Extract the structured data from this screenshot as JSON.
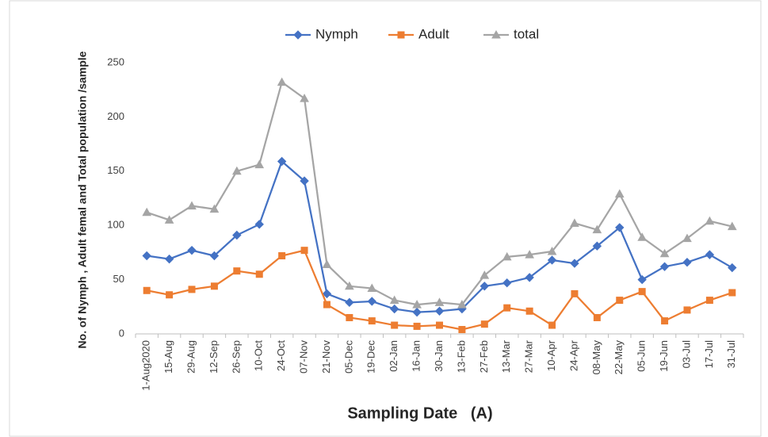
{
  "chart_data": {
    "type": "line",
    "x_label": "Sampling Date   (A)",
    "y_label": "No. of Nymph , Adult femal and Total population /sample",
    "categories": [
      "1-Aug2020",
      "15-Aug",
      "29-Aug",
      "12-Sep",
      "26-Sep",
      "10-Oct",
      "24-Oct",
      "07-Nov",
      "21-Nov",
      "05-Dec",
      "19-Dec",
      "02-Jan",
      "16-Jan",
      "30-Jan",
      "13-Feb",
      "27-Feb",
      "13-Mar",
      "27-Mar",
      "10-Apr",
      "24-Apr",
      "08-May",
      "22-May",
      "05-Jun",
      "19-Jun",
      "03-Jul",
      "17-Jul",
      "31-Jul"
    ],
    "series": [
      {
        "name": "Nymph",
        "color": "#4472c4",
        "marker": "diamond",
        "values": [
          72,
          69,
          77,
          72,
          91,
          101,
          159,
          141,
          37,
          29,
          30,
          23,
          20,
          21,
          23,
          44,
          47,
          52,
          68,
          65,
          81,
          98,
          50,
          62,
          66,
          73,
          61
        ]
      },
      {
        "name": "Adult",
        "color": "#ed7d31",
        "marker": "square",
        "values": [
          40,
          36,
          41,
          44,
          58,
          55,
          72,
          77,
          27,
          15,
          12,
          8,
          7,
          8,
          4,
          9,
          24,
          21,
          8,
          37,
          15,
          31,
          39,
          12,
          22,
          31,
          38
        ]
      },
      {
        "name": "total",
        "color": "#a5a5a5",
        "marker": "triangle",
        "values": [
          112,
          105,
          118,
          115,
          150,
          156,
          232,
          217,
          64,
          44,
          42,
          31,
          27,
          29,
          27,
          54,
          71,
          73,
          76,
          102,
          96,
          129,
          89,
          74,
          88,
          104,
          99
        ]
      }
    ],
    "ylim": [
      0,
      250
    ],
    "yticks": [
      0,
      50,
      100,
      150,
      200,
      250
    ],
    "grid": false
  }
}
